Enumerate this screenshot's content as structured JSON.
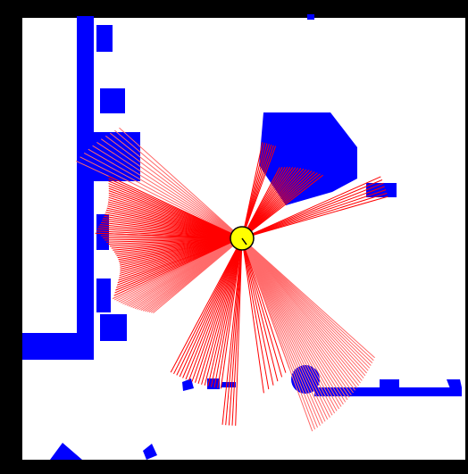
{
  "colors": {
    "frame": "#000000",
    "floor": "#ffffff",
    "obstacle": "#0000ff",
    "laser_dense": "#ff0000",
    "laser_sparse": "#ff6a6a",
    "robot_body": "#ffff00",
    "robot_outline": "#000000"
  },
  "icons": {
    "robot": "robot-circle-icon",
    "laser": "laser-scan-icon"
  }
}
